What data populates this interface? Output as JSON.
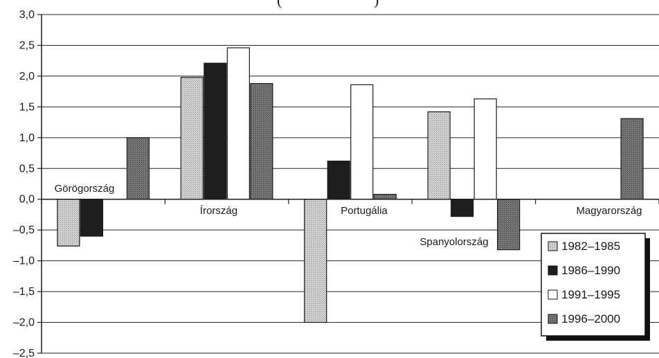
{
  "chart_data": {
    "type": "bar",
    "title_fragment": "(",
    "title_fragment_end": ")",
    "categories": [
      "Görögország",
      "Írország",
      "Portugália",
      "Spanyolország",
      "Magyarország"
    ],
    "series": [
      {
        "name": "1982–1985",
        "color": "#c8c8c8",
        "pattern": "dots-light",
        "values": [
          -0.76,
          1.98,
          -2.0,
          1.42,
          null
        ]
      },
      {
        "name": "1986–1990",
        "color": "#1e1e1e",
        "pattern": "solid-dark",
        "values": [
          -0.6,
          2.21,
          0.62,
          -0.28,
          null
        ]
      },
      {
        "name": "1991–1995",
        "color": "#ffffff",
        "pattern": "white",
        "values": [
          0.0,
          2.46,
          1.86,
          1.63,
          null
        ]
      },
      {
        "name": "1996–2000",
        "color": "#6e6e6e",
        "pattern": "dots-dark",
        "values": [
          1.0,
          1.88,
          0.08,
          -0.82,
          1.31
        ]
      }
    ],
    "ylim": [
      -2.5,
      3.0
    ],
    "yticks": [
      "3,0",
      "2,5",
      "2,0",
      "1,5",
      "1,0",
      "0,5",
      "0,0",
      "–0,5",
      "–1,0",
      "–1,5",
      "–2,0",
      "–2,5"
    ],
    "ytick_values": [
      3.0,
      2.5,
      2.0,
      1.5,
      1.0,
      0.5,
      0.0,
      -0.5,
      -1.0,
      -1.5,
      -2.0,
      -2.5
    ],
    "grid": true,
    "legend_position": "bottom-right",
    "xlabel": "",
    "ylabel": ""
  }
}
